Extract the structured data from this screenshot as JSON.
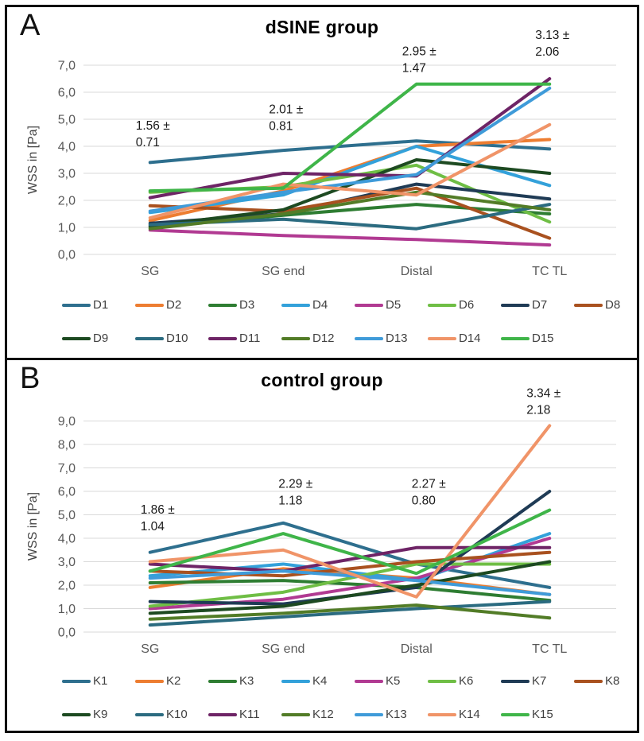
{
  "chart_data": [
    {
      "type": "line",
      "panel": "A",
      "title": "dSINE group",
      "ylabel": "WSS in [Pa]",
      "categories": [
        "SG",
        "SG end",
        "Distal",
        "TC TL"
      ],
      "ylim": [
        0,
        7
      ],
      "ytick_labels": [
        "0,0",
        "1,0",
        "2,0",
        "3,0",
        "4,0",
        "5,0",
        "6,0",
        "7,0"
      ],
      "grid": true,
      "legend_position": "bottom",
      "series": [
        {
          "name": "D1",
          "color": "#2E6F8E",
          "values": [
            3.4,
            3.85,
            4.2,
            3.9
          ]
        },
        {
          "name": "D2",
          "color": "#ED7D31",
          "values": [
            1.25,
            2.35,
            4.0,
            4.25
          ]
        },
        {
          "name": "D3",
          "color": "#2E7D32",
          "values": [
            1.0,
            1.45,
            1.85,
            1.5
          ]
        },
        {
          "name": "D4",
          "color": "#33A1DA",
          "values": [
            1.55,
            2.2,
            4.0,
            2.55
          ]
        },
        {
          "name": "D5",
          "color": "#B13A92",
          "values": [
            0.9,
            0.7,
            0.55,
            0.35
          ]
        },
        {
          "name": "D6",
          "color": "#6FBE45",
          "values": [
            2.3,
            2.5,
            3.3,
            1.2
          ]
        },
        {
          "name": "D7",
          "color": "#1F3B55",
          "values": [
            1.15,
            1.5,
            2.6,
            2.05
          ]
        },
        {
          "name": "D8",
          "color": "#A9511F",
          "values": [
            1.8,
            1.6,
            2.45,
            0.6
          ]
        },
        {
          "name": "D9",
          "color": "#1D4A21",
          "values": [
            1.05,
            1.65,
            3.5,
            3.0
          ]
        },
        {
          "name": "D10",
          "color": "#2B6B80",
          "values": [
            1.1,
            1.3,
            0.95,
            1.85
          ]
        },
        {
          "name": "D11",
          "color": "#6E2466",
          "values": [
            2.1,
            3.0,
            2.9,
            6.5
          ]
        },
        {
          "name": "D12",
          "color": "#527C27",
          "values": [
            0.95,
            1.5,
            2.3,
            1.65
          ]
        },
        {
          "name": "D13",
          "color": "#3F9BD9",
          "values": [
            1.6,
            2.3,
            2.95,
            6.15
          ]
        },
        {
          "name": "D14",
          "color": "#F09468",
          "values": [
            1.35,
            2.6,
            2.2,
            4.8
          ]
        },
        {
          "name": "D15",
          "color": "#3FB549",
          "values": [
            2.35,
            2.45,
            6.3,
            6.3
          ]
        }
      ],
      "annotations": [
        {
          "lines": [
            "1.56 ±",
            "0.71"
          ],
          "cat": 0,
          "y": 5.0,
          "dx": -18,
          "mean": 1.56,
          "sd": 0.71
        },
        {
          "lines": [
            "2.01 ±",
            "0.81"
          ],
          "cat": 1,
          "y": 5.6,
          "dx": -18,
          "mean": 2.01,
          "sd": 0.81
        },
        {
          "lines": [
            "2.95 ±",
            "1.47"
          ],
          "cat": 2,
          "y": 7.75,
          "dx": -18,
          "mean": 2.95,
          "sd": 1.47
        },
        {
          "lines": [
            "3.13 ±",
            "2.06"
          ],
          "cat": 3,
          "y": 8.35,
          "dx": -18,
          "mean": 3.13,
          "sd": 2.06
        }
      ]
    },
    {
      "type": "line",
      "panel": "B",
      "title": "control group",
      "ylabel": "WSS in [Pa]",
      "categories": [
        "SG",
        "SG end",
        "Distal",
        "TC TL"
      ],
      "ylim": [
        0,
        9
      ],
      "ytick_labels": [
        "0,0",
        "1,0",
        "2,0",
        "3,0",
        "4,0",
        "5,0",
        "6,0",
        "7,0",
        "8,0",
        "9,0"
      ],
      "grid": true,
      "legend_position": "bottom",
      "series": [
        {
          "name": "K1",
          "color": "#2E6F8E",
          "values": [
            3.4,
            4.65,
            2.9,
            1.9
          ]
        },
        {
          "name": "K2",
          "color": "#ED7D31",
          "values": [
            1.9,
            2.7,
            2.3,
            1.6
          ]
        },
        {
          "name": "K3",
          "color": "#2E7D32",
          "values": [
            2.1,
            2.2,
            1.9,
            1.35
          ]
        },
        {
          "name": "K4",
          "color": "#33A1DA",
          "values": [
            2.4,
            2.9,
            2.2,
            4.2
          ]
        },
        {
          "name": "K5",
          "color": "#B13A92",
          "values": [
            1.0,
            1.4,
            2.3,
            4.0
          ]
        },
        {
          "name": "K6",
          "color": "#6FBE45",
          "values": [
            1.1,
            1.7,
            2.9,
            2.9
          ]
        },
        {
          "name": "K7",
          "color": "#1F3B55",
          "values": [
            1.3,
            1.2,
            1.9,
            6.0
          ]
        },
        {
          "name": "K8",
          "color": "#A9511F",
          "values": [
            2.6,
            2.4,
            3.0,
            3.4
          ]
        },
        {
          "name": "K9",
          "color": "#1D4A21",
          "values": [
            0.8,
            1.1,
            2.0,
            3.0
          ]
        },
        {
          "name": "K10",
          "color": "#2B6B80",
          "values": [
            0.3,
            0.65,
            1.0,
            1.3
          ]
        },
        {
          "name": "K11",
          "color": "#6E2466",
          "values": [
            2.9,
            2.6,
            3.6,
            3.6
          ]
        },
        {
          "name": "K12",
          "color": "#527C27",
          "values": [
            0.55,
            0.8,
            1.15,
            0.6
          ]
        },
        {
          "name": "K13",
          "color": "#3F9BD9",
          "values": [
            2.3,
            2.6,
            2.2,
            1.6
          ]
        },
        {
          "name": "K14",
          "color": "#F09468",
          "values": [
            3.0,
            3.5,
            1.5,
            8.8
          ]
        },
        {
          "name": "K15",
          "color": "#3FB549",
          "values": [
            2.6,
            4.2,
            2.5,
            5.2
          ]
        }
      ],
      "annotations": [
        {
          "lines": [
            "1.86 ±",
            "1.04"
          ],
          "cat": 0,
          "y": 5.5,
          "dx": -12,
          "mean": 1.86,
          "sd": 1.04
        },
        {
          "lines": [
            "2.29 ±",
            "1.18"
          ],
          "cat": 1,
          "y": 6.6,
          "dx": -6,
          "mean": 2.29,
          "sd": 1.18
        },
        {
          "lines": [
            "2.27 ±",
            "0.80"
          ],
          "cat": 2,
          "y": 6.6,
          "dx": -6,
          "mean": 2.27,
          "sd": 0.8
        },
        {
          "lines": [
            "3.34 ±",
            "2.18"
          ],
          "cat": 3,
          "y": 10.45,
          "dx": -29,
          "mean": 3.34,
          "sd": 2.18
        }
      ]
    }
  ]
}
